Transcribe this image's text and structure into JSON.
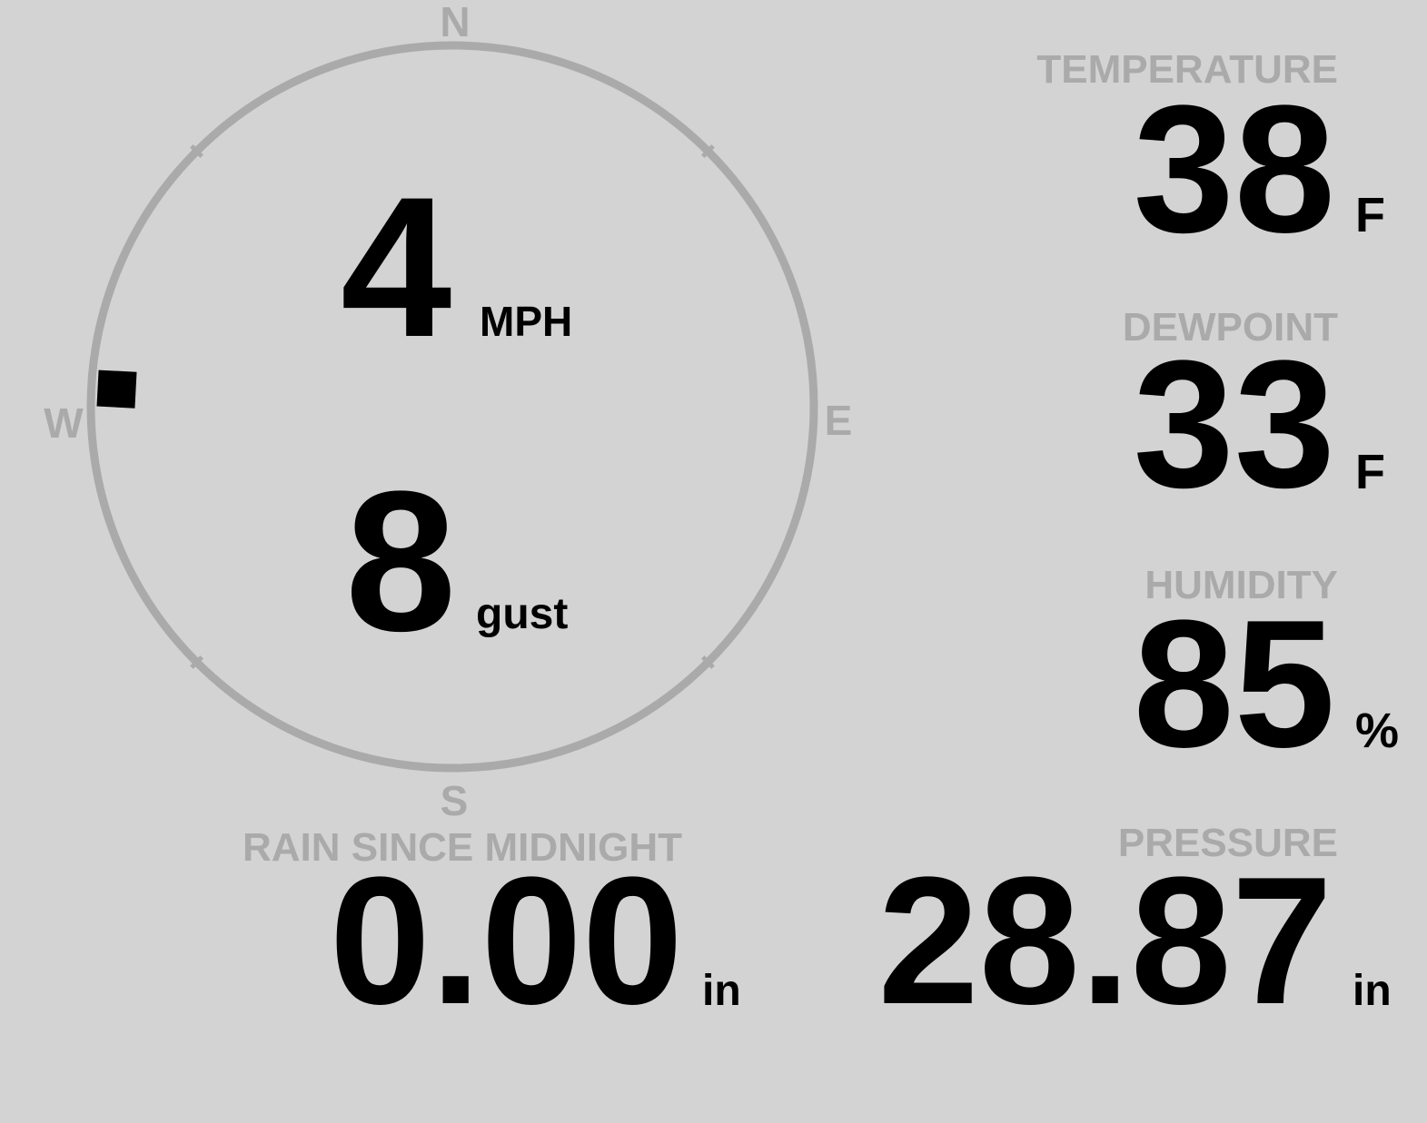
{
  "wind": {
    "speed": "4",
    "speed_unit": "MPH",
    "gust": "8",
    "gust_label": "gust",
    "direction_degrees": 273,
    "compass": {
      "n": "N",
      "e": "E",
      "s": "S",
      "w": "W"
    }
  },
  "temperature": {
    "label": "TEMPERATURE",
    "value": "38",
    "unit": "F"
  },
  "dewpoint": {
    "label": "DEWPOINT",
    "value": "33",
    "unit": "F"
  },
  "humidity": {
    "label": "HUMIDITY",
    "value": "85",
    "unit": "%"
  },
  "rain": {
    "label": "RAIN SINCE MIDNIGHT",
    "value": "0.00",
    "unit": "in"
  },
  "pressure": {
    "label": "PRESSURE",
    "value": "28.87",
    "unit": "in"
  },
  "colors": {
    "background": "#d3d3d3",
    "label": "#aaaaaa",
    "value": "#000000"
  }
}
